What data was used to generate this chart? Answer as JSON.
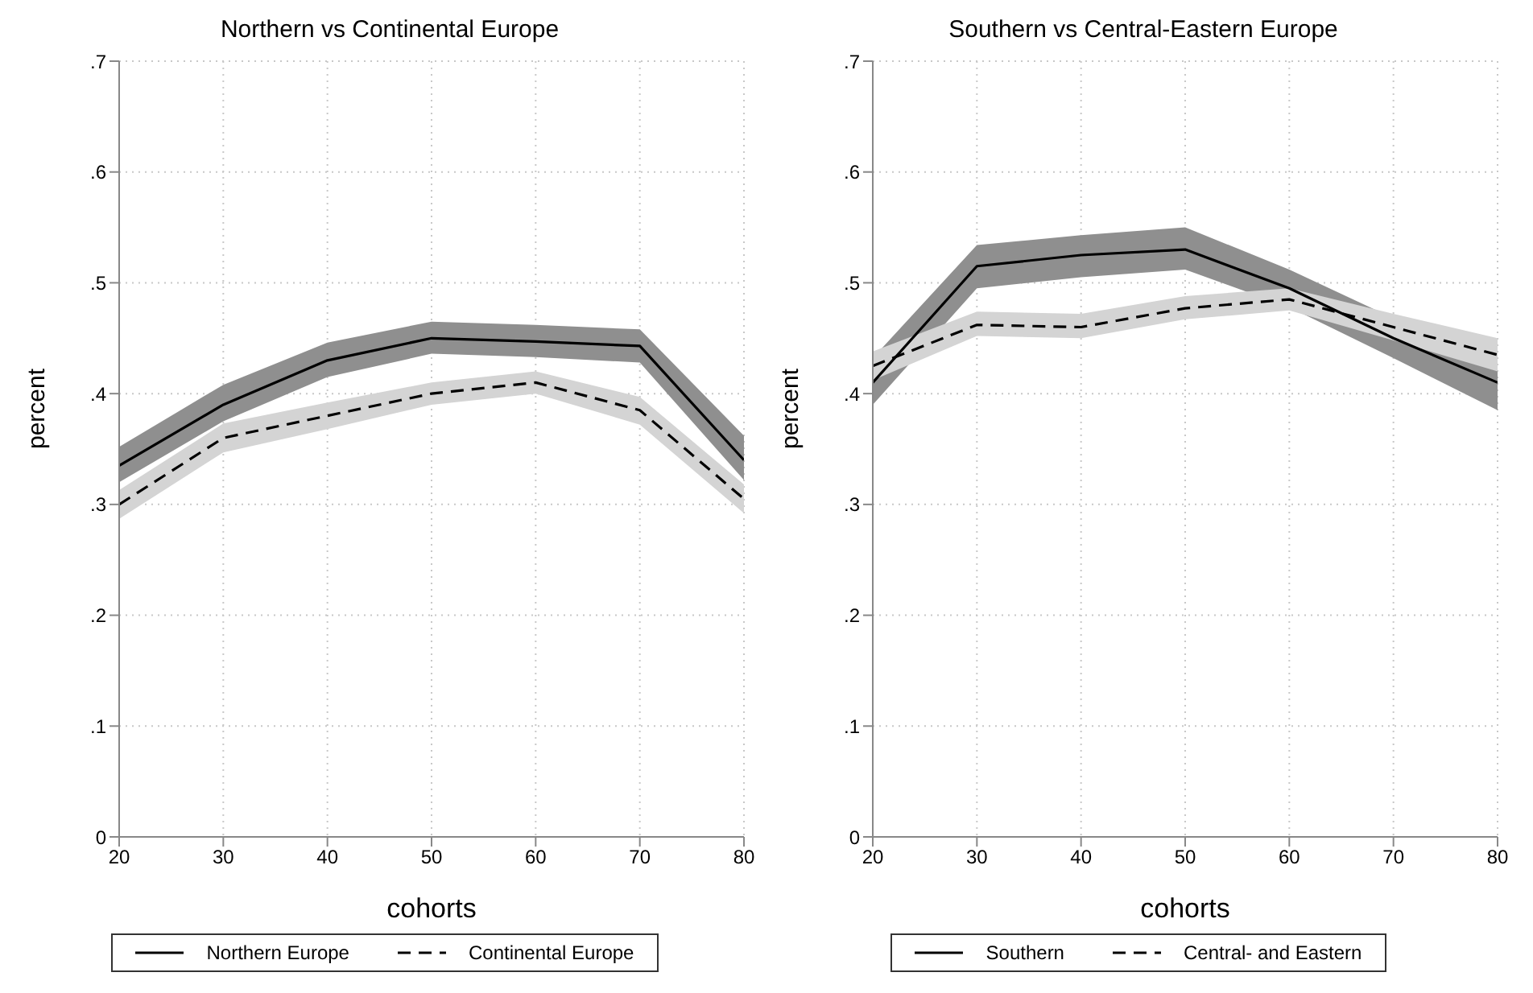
{
  "chart_data": [
    {
      "type": "line",
      "title": "Northern vs Continental Europe",
      "xlabel": "cohorts",
      "ylabel": "percent",
      "x": [
        20,
        30,
        40,
        50,
        60,
        70,
        80
      ],
      "series": [
        {
          "name": "Northern Europe",
          "color": "#000000",
          "line_style": "solid",
          "values": [
            0.335,
            0.39,
            0.43,
            0.45,
            0.447,
            0.443,
            0.34
          ],
          "lower": [
            0.32,
            0.375,
            0.415,
            0.436,
            0.433,
            0.428,
            0.322
          ],
          "upper": [
            0.352,
            0.408,
            0.446,
            0.465,
            0.462,
            0.458,
            0.362
          ]
        },
        {
          "name": "Continental Europe",
          "color": "#000000",
          "line_style": "dashed",
          "values": [
            0.3,
            0.36,
            0.38,
            0.4,
            0.41,
            0.385,
            0.305
          ],
          "lower": [
            0.287,
            0.347,
            0.368,
            0.39,
            0.4,
            0.372,
            0.292
          ],
          "upper": [
            0.313,
            0.373,
            0.392,
            0.41,
            0.42,
            0.397,
            0.318
          ]
        }
      ],
      "xlim": [
        20,
        80
      ],
      "xticks": [
        20,
        30,
        40,
        50,
        60,
        70,
        80
      ],
      "ylim": [
        0,
        0.7
      ],
      "yticks": [
        0,
        {
          "value": 0.1,
          "label": ".1"
        },
        {
          "value": 0.2,
          "label": ".2"
        },
        {
          "value": 0.3,
          "label": ".3"
        },
        {
          "value": 0.4,
          "label": ".4"
        },
        {
          "value": 0.5,
          "label": ".5"
        },
        {
          "value": 0.6,
          "label": ".6"
        },
        {
          "value": 0.7,
          "label": ".7"
        }
      ],
      "grid": true,
      "legend": "bottom"
    },
    {
      "type": "line",
      "title": "Southern vs Central-Eastern Europe",
      "xlabel": "cohorts",
      "ylabel": "percent",
      "x": [
        20,
        30,
        40,
        50,
        60,
        70,
        80
      ],
      "series": [
        {
          "name": "Southern",
          "color": "#000000",
          "line_style": "solid",
          "values": [
            0.41,
            0.515,
            0.525,
            0.53,
            0.495,
            0.45,
            0.41
          ],
          "lower": [
            0.39,
            0.495,
            0.505,
            0.512,
            0.478,
            0.432,
            0.385
          ],
          "upper": [
            0.432,
            0.534,
            0.543,
            0.55,
            0.512,
            0.468,
            0.432
          ]
        },
        {
          "name": "Central- and Eastern",
          "color": "#000000",
          "line_style": "dashed",
          "values": [
            0.425,
            0.462,
            0.46,
            0.477,
            0.485,
            0.46,
            0.435
          ],
          "lower": [
            0.412,
            0.452,
            0.45,
            0.467,
            0.475,
            0.448,
            0.42
          ],
          "upper": [
            0.438,
            0.474,
            0.472,
            0.488,
            0.495,
            0.472,
            0.45
          ]
        }
      ],
      "xlim": [
        20,
        80
      ],
      "xticks": [
        20,
        30,
        40,
        50,
        60,
        70,
        80
      ],
      "ylim": [
        0,
        0.7
      ],
      "yticks": [
        0,
        {
          "value": 0.1,
          "label": ".1"
        },
        {
          "value": 0.2,
          "label": ".2"
        },
        {
          "value": 0.3,
          "label": ".3"
        },
        {
          "value": 0.4,
          "label": ".4"
        },
        {
          "value": 0.5,
          "label": ".5"
        },
        {
          "value": 0.6,
          "label": ".6"
        },
        {
          "value": 0.7,
          "label": ".7"
        }
      ],
      "grid": true,
      "legend": "bottom"
    }
  ]
}
